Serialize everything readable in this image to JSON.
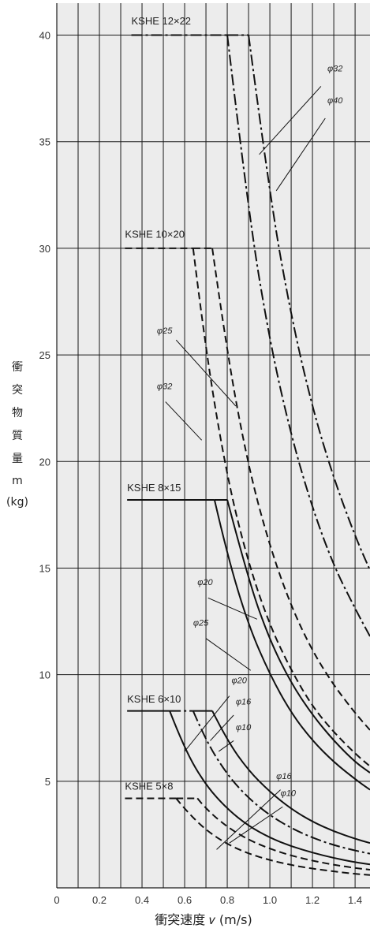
{
  "chart_data": {
    "type": "line",
    "title": "",
    "xlabel": "衝突速度 𝑣 (m/s)",
    "ylabel_lines": [
      "衝",
      "突",
      "物",
      "質",
      "量",
      "m",
      "(kg)"
    ],
    "xlim": [
      0,
      1.47
    ],
    "ylim": [
      0,
      41.5
    ],
    "x_ticks": [
      0,
      0.2,
      0.4,
      0.6,
      0.8,
      1.0,
      1.2,
      1.4
    ],
    "x_tick_labels": [
      "0",
      "0.2",
      "0.4",
      "0.6",
      "0.8",
      "1.0",
      "1.2",
      "1.4"
    ],
    "y_ticks": [
      5,
      10,
      15,
      20,
      25,
      30,
      35,
      40
    ],
    "y_tick_labels": [
      "5",
      "10",
      "15",
      "20",
      "25",
      "30",
      "35",
      "40"
    ],
    "grid": true,
    "series_labels": [
      {
        "id": "ksk1222",
        "text": "KSHE 12×22",
        "x": 0.35,
        "y": 40.5
      },
      {
        "id": "ksk1020",
        "text": "KSHE 10×20",
        "x": 0.32,
        "y": 30.5
      },
      {
        "id": "ksk815",
        "text": "KSHE 8×15",
        "x": 0.33,
        "y": 18.6
      },
      {
        "id": "ksk610",
        "text": "KSHE 6×10",
        "x": 0.33,
        "y": 8.7
      },
      {
        "id": "ksk58",
        "text": "KSHE 5×8",
        "x": 0.32,
        "y": 4.6
      }
    ],
    "series": [
      {
        "id": "s1222-32",
        "group": "KSHE 12×22",
        "diameter": "φ32",
        "dash": "dashdot",
        "plateau": 40,
        "x_start": 0.35,
        "x_knee": 0.8,
        "points": [
          [
            0.8,
            40
          ],
          [
            0.9,
            31.6
          ],
          [
            1.0,
            25.6
          ],
          [
            1.1,
            21.2
          ],
          [
            1.2,
            17.8
          ],
          [
            1.3,
            15.1
          ],
          [
            1.4,
            13.1
          ],
          [
            1.47,
            11.8
          ]
        ]
      },
      {
        "id": "s1222-40",
        "group": "KSHE 12×22",
        "diameter": "φ40",
        "dash": "dashdot",
        "plateau": 40,
        "x_start": 0.8,
        "x_knee": 0.9,
        "points": [
          [
            0.9,
            40
          ],
          [
            1.0,
            32.4
          ],
          [
            1.1,
            26.8
          ],
          [
            1.2,
            22.5
          ],
          [
            1.3,
            19.2
          ],
          [
            1.4,
            16.5
          ],
          [
            1.47,
            14.9
          ]
        ]
      },
      {
        "id": "s1020-25",
        "group": "KSHE 10×20",
        "diameter": "φ25",
        "dash": "dash",
        "plateau": 30,
        "x_start": 0.32,
        "x_knee": 0.64,
        "points": [
          [
            0.64,
            30
          ],
          [
            0.7,
            25.1
          ],
          [
            0.8,
            19.2
          ],
          [
            0.9,
            15.2
          ],
          [
            1.0,
            12.3
          ],
          [
            1.1,
            10.2
          ],
          [
            1.2,
            8.5
          ],
          [
            1.3,
            7.3
          ],
          [
            1.4,
            6.3
          ],
          [
            1.47,
            5.7
          ]
        ]
      },
      {
        "id": "s1020-32",
        "group": "KSHE 10×20",
        "diameter": "φ32",
        "dash": "dash",
        "plateau": 30,
        "x_start": 0.64,
        "x_knee": 0.73,
        "points": [
          [
            0.73,
            30
          ],
          [
            0.8,
            25.0
          ],
          [
            0.9,
            19.7
          ],
          [
            1.0,
            16.0
          ],
          [
            1.1,
            13.2
          ],
          [
            1.2,
            11.1
          ],
          [
            1.3,
            9.5
          ],
          [
            1.4,
            8.2
          ],
          [
            1.47,
            7.4
          ]
        ]
      },
      {
        "id": "s815-20",
        "group": "KSHE 8×15",
        "diameter": "φ20",
        "dash": "solid",
        "plateau": 18.2,
        "x_start": 0.33,
        "x_knee": 0.74,
        "points": [
          [
            0.74,
            18.2
          ],
          [
            0.8,
            15.6
          ],
          [
            0.9,
            12.3
          ],
          [
            1.0,
            10.0
          ],
          [
            1.1,
            8.2
          ],
          [
            1.2,
            6.9
          ],
          [
            1.3,
            5.9
          ],
          [
            1.4,
            5.1
          ],
          [
            1.47,
            4.6
          ]
        ]
      },
      {
        "id": "s815-25",
        "group": "KSHE 8×15",
        "diameter": "φ25",
        "dash": "solid",
        "plateau": 18.2,
        "x_start": 0.74,
        "x_knee": 0.8,
        "points": [
          [
            0.8,
            18.2
          ],
          [
            0.9,
            14.4
          ],
          [
            1.0,
            11.6
          ],
          [
            1.1,
            9.6
          ],
          [
            1.2,
            8.1
          ],
          [
            1.3,
            6.9
          ],
          [
            1.4,
            5.9
          ],
          [
            1.47,
            5.4
          ]
        ]
      },
      {
        "id": "s610-20",
        "group": "KSHE 6×10",
        "diameter": "φ20",
        "dash": "solid",
        "plateau": 8.3,
        "x_start": 0.33,
        "x_knee": 0.53,
        "points": [
          [
            0.53,
            8.3
          ],
          [
            0.6,
            6.5
          ],
          [
            0.7,
            4.8
          ],
          [
            0.8,
            3.7
          ],
          [
            0.9,
            2.9
          ],
          [
            1.0,
            2.35
          ],
          [
            1.1,
            1.95
          ],
          [
            1.2,
            1.65
          ],
          [
            1.3,
            1.4
          ],
          [
            1.4,
            1.2
          ],
          [
            1.47,
            1.1
          ]
        ]
      },
      {
        "id": "s610-16",
        "group": "KSHE 6×10",
        "diameter": "φ16",
        "dash": "dashdot",
        "plateau": 8.3,
        "x_start": 0.53,
        "x_knee": 0.64,
        "points": [
          [
            0.64,
            8.3
          ],
          [
            0.7,
            6.9
          ],
          [
            0.8,
            5.3
          ],
          [
            0.9,
            4.2
          ],
          [
            1.0,
            3.4
          ],
          [
            1.1,
            2.8
          ],
          [
            1.2,
            2.35
          ],
          [
            1.3,
            2.0
          ],
          [
            1.4,
            1.75
          ],
          [
            1.47,
            1.6
          ]
        ]
      },
      {
        "id": "s610-10",
        "group": "KSHE 6×10",
        "diameter": "φ10",
        "dash": "solid",
        "plateau": 8.3,
        "x_start": 0.64,
        "x_knee": 0.73,
        "points": [
          [
            0.73,
            8.3
          ],
          [
            0.8,
            6.9
          ],
          [
            0.9,
            5.5
          ],
          [
            1.0,
            4.5
          ],
          [
            1.1,
            3.7
          ],
          [
            1.2,
            3.1
          ],
          [
            1.3,
            2.65
          ],
          [
            1.4,
            2.3
          ],
          [
            1.47,
            2.1
          ]
        ]
      },
      {
        "id": "s58-16",
        "group": "KSHE 5×8",
        "diameter": "φ16",
        "dash": "dash",
        "plateau": 4.2,
        "x_start": 0.32,
        "x_knee": 0.56,
        "points": [
          [
            0.56,
            4.2
          ],
          [
            0.6,
            3.7
          ],
          [
            0.7,
            2.7
          ],
          [
            0.8,
            2.05
          ],
          [
            0.9,
            1.6
          ],
          [
            1.0,
            1.3
          ],
          [
            1.1,
            1.07
          ],
          [
            1.2,
            0.9
          ],
          [
            1.3,
            0.77
          ],
          [
            1.4,
            0.66
          ],
          [
            1.47,
            0.6
          ]
        ]
      },
      {
        "id": "s58-10",
        "group": "KSHE 5×8",
        "diameter": "φ10",
        "dash": "dash",
        "plateau": 4.2,
        "x_start": 0.56,
        "x_knee": 0.66,
        "points": [
          [
            0.66,
            4.2
          ],
          [
            0.7,
            3.7
          ],
          [
            0.8,
            2.85
          ],
          [
            0.9,
            2.25
          ],
          [
            1.0,
            1.83
          ],
          [
            1.1,
            1.51
          ],
          [
            1.2,
            1.27
          ],
          [
            1.3,
            1.08
          ],
          [
            1.4,
            0.93
          ],
          [
            1.47,
            0.85
          ]
        ]
      }
    ],
    "diameter_labels": [
      {
        "id": "d1",
        "text": "φ32",
        "tx": 1.27,
        "ty": 38.3,
        "lx1": 1.24,
        "ly1": 37.6,
        "lx2": 0.95,
        "ly2": 34.4
      },
      {
        "id": "d2",
        "text": "φ40",
        "tx": 1.27,
        "ty": 36.8,
        "lx1": 1.26,
        "ly1": 36.1,
        "lx2": 1.03,
        "ly2": 32.7
      },
      {
        "id": "d3",
        "text": "φ25",
        "tx": 0.47,
        "ty": 26.0,
        "lx1": 0.56,
        "ly1": 25.7,
        "lx2": 0.84,
        "ly2": 22.6
      },
      {
        "id": "d4",
        "text": "φ32",
        "tx": 0.47,
        "ty": 23.4,
        "lx1": 0.51,
        "ly1": 22.8,
        "lx2": 0.68,
        "ly2": 21.0
      },
      {
        "id": "d5",
        "text": "φ20",
        "tx": 0.66,
        "ty": 14.2,
        "lx1": 0.71,
        "ly1": 13.6,
        "lx2": 0.94,
        "ly2": 12.6
      },
      {
        "id": "d6",
        "text": "φ25",
        "tx": 0.64,
        "ty": 12.3,
        "lx1": 0.7,
        "ly1": 11.7,
        "lx2": 0.91,
        "ly2": 10.2
      },
      {
        "id": "d7",
        "text": "φ20",
        "tx": 0.82,
        "ty": 9.6,
        "lx1": 0.81,
        "ly1": 9.0,
        "lx2": 0.6,
        "ly2": 6.4
      },
      {
        "id": "d8",
        "text": "φ16",
        "tx": 0.84,
        "ty": 8.6,
        "lx1": 0.83,
        "ly1": 8.1,
        "lx2": 0.72,
        "ly2": 6.9
      },
      {
        "id": "d9",
        "text": "φ10",
        "tx": 0.84,
        "ty": 7.4,
        "lx1": 0.83,
        "ly1": 6.9,
        "lx2": 0.76,
        "ly2": 6.4
      },
      {
        "id": "d10",
        "text": "φ16",
        "tx": 1.03,
        "ty": 5.1,
        "lx1": 1.05,
        "ly1": 4.6,
        "lx2": 0.75,
        "ly2": 1.8
      },
      {
        "id": "d11",
        "text": "φ10",
        "tx": 1.05,
        "ty": 4.3,
        "lx1": 1.06,
        "ly1": 3.8,
        "lx2": 0.81,
        "ly2": 2.1
      }
    ]
  }
}
